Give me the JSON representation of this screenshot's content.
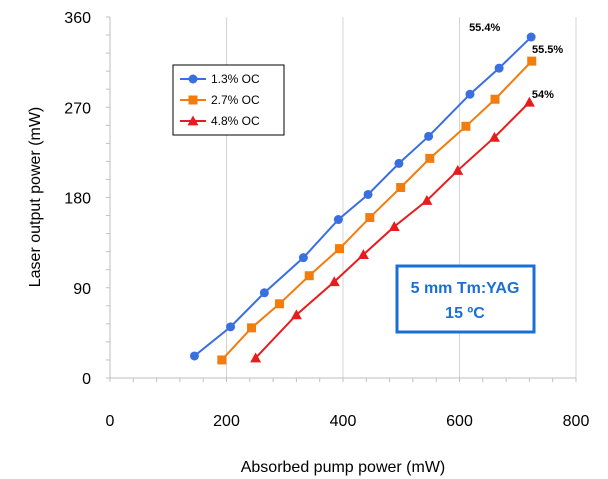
{
  "chart_data": {
    "type": "line",
    "xlabel": "Absorbed pump power (mW)",
    "ylabel": "Laser output power (mW)",
    "xlim": [
      0,
      800
    ],
    "ylim": [
      0,
      360
    ],
    "xticks": [
      "0",
      "200",
      "400",
      "600",
      "800"
    ],
    "yticks": [
      "0",
      "90",
      "180",
      "270",
      "360"
    ],
    "grid": "vertical",
    "legend_position": "top-left",
    "series": [
      {
        "name": "1.3% OC",
        "color": "#3a6fe0",
        "marker": "circle",
        "x": [
          145,
          207,
          265,
          332,
          392,
          443,
          496,
          547,
          618,
          668,
          723
        ],
        "y": [
          22,
          51,
          85,
          120,
          158,
          183,
          214,
          241,
          283,
          309,
          340
        ]
      },
      {
        "name": "2.7% OC",
        "color": "#f27d0c",
        "marker": "square",
        "x": [
          192,
          243,
          291,
          342,
          394,
          446,
          499,
          549,
          611,
          661,
          724
        ],
        "y": [
          18,
          50,
          74,
          102,
          129,
          160,
          190,
          219,
          251,
          278,
          316
        ]
      },
      {
        "name": "4.8% OC",
        "color": "#e81c1c",
        "marker": "triangle",
        "x": [
          250,
          320,
          385,
          435,
          488,
          544,
          597,
          660,
          720
        ],
        "y": [
          20,
          63,
          96,
          123,
          151,
          177,
          207,
          240,
          275
        ]
      }
    ],
    "annotations": [
      {
        "text": "55.4%",
        "x": 670,
        "y": 346
      },
      {
        "text": "55.5%",
        "x": 778,
        "y": 324
      },
      {
        "text": "54%",
        "x": 762,
        "y": 279
      }
    ],
    "textbox": {
      "lines": [
        "5 mm Tm:YAG",
        "15 ºC"
      ],
      "border_color": "#1a6fd6",
      "text_color": "#1a6fd6"
    }
  }
}
